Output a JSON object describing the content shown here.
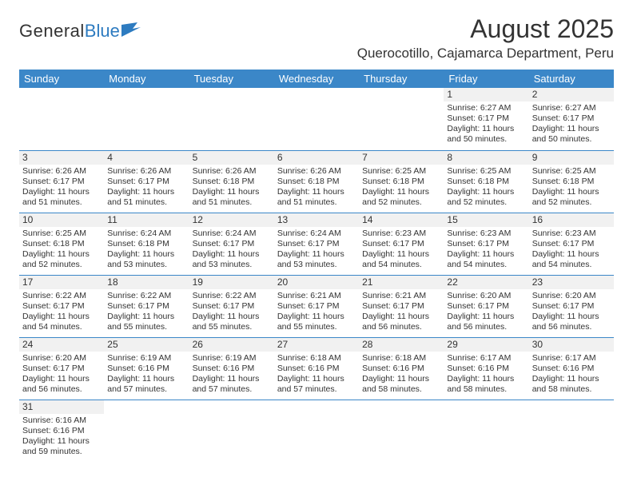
{
  "brand": {
    "general": "General",
    "blue": "Blue"
  },
  "title": "August 2025",
  "location": "Querocotillo, Cajamarca Department, Peru",
  "colors": {
    "header_bg": "#3b87c8",
    "row_divider": "#3b87c8",
    "daynum_bg": "#f1f1f1",
    "text": "#333333",
    "logo_accent": "#2d7bc0"
  },
  "calendar": {
    "columns": [
      "Sunday",
      "Monday",
      "Tuesday",
      "Wednesday",
      "Thursday",
      "Friday",
      "Saturday"
    ],
    "weeks": [
      [
        null,
        null,
        null,
        null,
        null,
        {
          "n": "1",
          "sunrise": "6:27 AM",
          "sunset": "6:17 PM",
          "daylight": "11 hours and 50 minutes."
        },
        {
          "n": "2",
          "sunrise": "6:27 AM",
          "sunset": "6:17 PM",
          "daylight": "11 hours and 50 minutes."
        }
      ],
      [
        {
          "n": "3",
          "sunrise": "6:26 AM",
          "sunset": "6:17 PM",
          "daylight": "11 hours and 51 minutes."
        },
        {
          "n": "4",
          "sunrise": "6:26 AM",
          "sunset": "6:17 PM",
          "daylight": "11 hours and 51 minutes."
        },
        {
          "n": "5",
          "sunrise": "6:26 AM",
          "sunset": "6:18 PM",
          "daylight": "11 hours and 51 minutes."
        },
        {
          "n": "6",
          "sunrise": "6:26 AM",
          "sunset": "6:18 PM",
          "daylight": "11 hours and 51 minutes."
        },
        {
          "n": "7",
          "sunrise": "6:25 AM",
          "sunset": "6:18 PM",
          "daylight": "11 hours and 52 minutes."
        },
        {
          "n": "8",
          "sunrise": "6:25 AM",
          "sunset": "6:18 PM",
          "daylight": "11 hours and 52 minutes."
        },
        {
          "n": "9",
          "sunrise": "6:25 AM",
          "sunset": "6:18 PM",
          "daylight": "11 hours and 52 minutes."
        }
      ],
      [
        {
          "n": "10",
          "sunrise": "6:25 AM",
          "sunset": "6:18 PM",
          "daylight": "11 hours and 52 minutes."
        },
        {
          "n": "11",
          "sunrise": "6:24 AM",
          "sunset": "6:18 PM",
          "daylight": "11 hours and 53 minutes."
        },
        {
          "n": "12",
          "sunrise": "6:24 AM",
          "sunset": "6:17 PM",
          "daylight": "11 hours and 53 minutes."
        },
        {
          "n": "13",
          "sunrise": "6:24 AM",
          "sunset": "6:17 PM",
          "daylight": "11 hours and 53 minutes."
        },
        {
          "n": "14",
          "sunrise": "6:23 AM",
          "sunset": "6:17 PM",
          "daylight": "11 hours and 54 minutes."
        },
        {
          "n": "15",
          "sunrise": "6:23 AM",
          "sunset": "6:17 PM",
          "daylight": "11 hours and 54 minutes."
        },
        {
          "n": "16",
          "sunrise": "6:23 AM",
          "sunset": "6:17 PM",
          "daylight": "11 hours and 54 minutes."
        }
      ],
      [
        {
          "n": "17",
          "sunrise": "6:22 AM",
          "sunset": "6:17 PM",
          "daylight": "11 hours and 54 minutes."
        },
        {
          "n": "18",
          "sunrise": "6:22 AM",
          "sunset": "6:17 PM",
          "daylight": "11 hours and 55 minutes."
        },
        {
          "n": "19",
          "sunrise": "6:22 AM",
          "sunset": "6:17 PM",
          "daylight": "11 hours and 55 minutes."
        },
        {
          "n": "20",
          "sunrise": "6:21 AM",
          "sunset": "6:17 PM",
          "daylight": "11 hours and 55 minutes."
        },
        {
          "n": "21",
          "sunrise": "6:21 AM",
          "sunset": "6:17 PM",
          "daylight": "11 hours and 56 minutes."
        },
        {
          "n": "22",
          "sunrise": "6:20 AM",
          "sunset": "6:17 PM",
          "daylight": "11 hours and 56 minutes."
        },
        {
          "n": "23",
          "sunrise": "6:20 AM",
          "sunset": "6:17 PM",
          "daylight": "11 hours and 56 minutes."
        }
      ],
      [
        {
          "n": "24",
          "sunrise": "6:20 AM",
          "sunset": "6:17 PM",
          "daylight": "11 hours and 56 minutes."
        },
        {
          "n": "25",
          "sunrise": "6:19 AM",
          "sunset": "6:16 PM",
          "daylight": "11 hours and 57 minutes."
        },
        {
          "n": "26",
          "sunrise": "6:19 AM",
          "sunset": "6:16 PM",
          "daylight": "11 hours and 57 minutes."
        },
        {
          "n": "27",
          "sunrise": "6:18 AM",
          "sunset": "6:16 PM",
          "daylight": "11 hours and 57 minutes."
        },
        {
          "n": "28",
          "sunrise": "6:18 AM",
          "sunset": "6:16 PM",
          "daylight": "11 hours and 58 minutes."
        },
        {
          "n": "29",
          "sunrise": "6:17 AM",
          "sunset": "6:16 PM",
          "daylight": "11 hours and 58 minutes."
        },
        {
          "n": "30",
          "sunrise": "6:17 AM",
          "sunset": "6:16 PM",
          "daylight": "11 hours and 58 minutes."
        }
      ],
      [
        {
          "n": "31",
          "sunrise": "6:16 AM",
          "sunset": "6:16 PM",
          "daylight": "11 hours and 59 minutes."
        },
        null,
        null,
        null,
        null,
        null,
        null
      ]
    ],
    "labels": {
      "sunrise": "Sunrise:",
      "sunset": "Sunset:",
      "daylight": "Daylight:"
    }
  }
}
